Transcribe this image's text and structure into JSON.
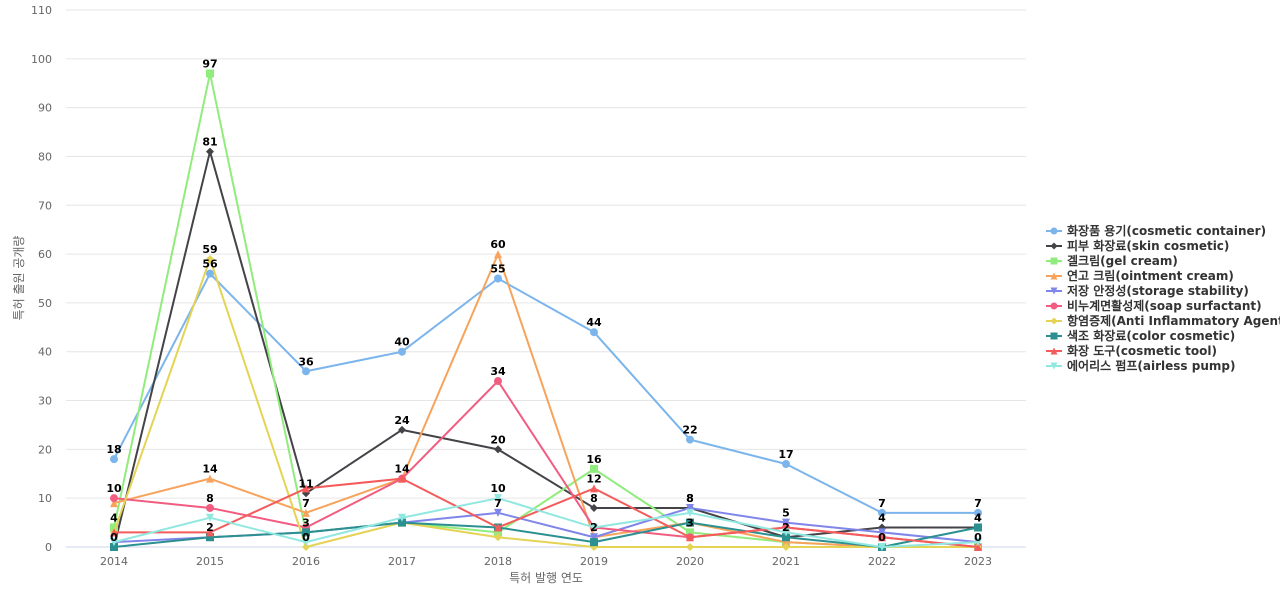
{
  "chart_data": {
    "type": "line",
    "title": "",
    "xlabel": "특허 발행 연도",
    "ylabel": "특허 출원 공개량",
    "ylim": [
      0,
      110
    ],
    "yticks": [
      0,
      10,
      20,
      30,
      40,
      50,
      60,
      70,
      80,
      90,
      100,
      110
    ],
    "grid": true,
    "legend_position": "right",
    "categories": [
      "2014",
      "2015",
      "2016",
      "2017",
      "2018",
      "2019",
      "2020",
      "2021",
      "2022",
      "2023"
    ],
    "series": [
      {
        "name": "화장품 용기(cosmetic container)",
        "color": "#7cb5ec",
        "marker": "circle",
        "values": [
          18,
          56,
          36,
          40,
          55,
          44,
          22,
          17,
          7,
          7
        ],
        "labels": [
          true,
          true,
          true,
          true,
          true,
          true,
          true,
          true,
          true,
          true
        ]
      },
      {
        "name": "피부 화장료(skin cosmetic)",
        "color": "#434348",
        "marker": "diamond",
        "values": [
          0,
          81,
          11,
          24,
          20,
          8,
          8,
          2,
          4,
          4
        ],
        "labels": [
          true,
          true,
          true,
          true,
          true,
          true,
          true,
          true,
          true,
          true
        ]
      },
      {
        "name": "겔크림(gel cream)",
        "color": "#90ed7d",
        "marker": "square",
        "values": [
          4,
          97,
          3,
          5,
          3,
          16,
          3,
          1,
          0,
          0
        ],
        "labels": [
          true,
          true,
          true,
          false,
          false,
          true,
          true,
          false,
          true,
          false
        ]
      },
      {
        "name": "연고 크림(ointment cream)",
        "color": "#f7a35c",
        "marker": "triangle",
        "values": [
          9,
          14,
          7,
          14,
          60,
          2,
          5,
          1,
          0,
          0
        ],
        "labels": [
          false,
          true,
          true,
          true,
          true,
          true,
          false,
          false,
          false,
          false
        ]
      },
      {
        "name": "저장 안정성(storage stability)",
        "color": "#8085e9",
        "marker": "triangle-down",
        "values": [
          1,
          2,
          3,
          5,
          7,
          2,
          8,
          5,
          3,
          1
        ],
        "labels": [
          false,
          true,
          false,
          false,
          true,
          false,
          true,
          true,
          false,
          false
        ]
      },
      {
        "name": "비누계면활성제(soap surfactant)",
        "color": "#f15c80",
        "marker": "circle",
        "values": [
          10,
          8,
          4,
          14,
          34,
          4,
          2,
          4,
          2,
          0
        ],
        "labels": [
          true,
          true,
          false,
          false,
          true,
          false,
          false,
          false,
          false,
          false
        ]
      },
      {
        "name": "항염증제(Anti Inflammatory Agent)",
        "color": "#e4d354",
        "marker": "diamond",
        "values": [
          3,
          59,
          0,
          5,
          2,
          0,
          0,
          0,
          0,
          0
        ],
        "labels": [
          false,
          true,
          true,
          false,
          false,
          false,
          false,
          false,
          false,
          false
        ]
      },
      {
        "name": "색조 화장료(color cosmetic)",
        "color": "#2b908f",
        "marker": "square",
        "values": [
          0,
          2,
          3,
          5,
          4,
          1,
          5,
          2,
          0,
          4
        ],
        "labels": [
          false,
          false,
          false,
          false,
          false,
          false,
          false,
          false,
          false,
          true
        ]
      },
      {
        "name": "화장 도구(cosmetic tool)",
        "color": "#f45b5b",
        "marker": "triangle",
        "values": [
          3,
          3,
          12,
          14,
          4,
          12,
          2,
          4,
          2,
          0
        ],
        "labels": [
          false,
          false,
          false,
          false,
          false,
          true,
          false,
          false,
          false,
          true
        ]
      },
      {
        "name": "에어리스 펌프(airless pump)",
        "color": "#91e8e1",
        "marker": "triangle-down",
        "values": [
          1,
          6,
          1,
          6,
          10,
          4,
          7,
          3,
          0,
          1
        ],
        "labels": [
          false,
          false,
          false,
          false,
          true,
          false,
          false,
          false,
          false,
          false
        ]
      }
    ]
  }
}
